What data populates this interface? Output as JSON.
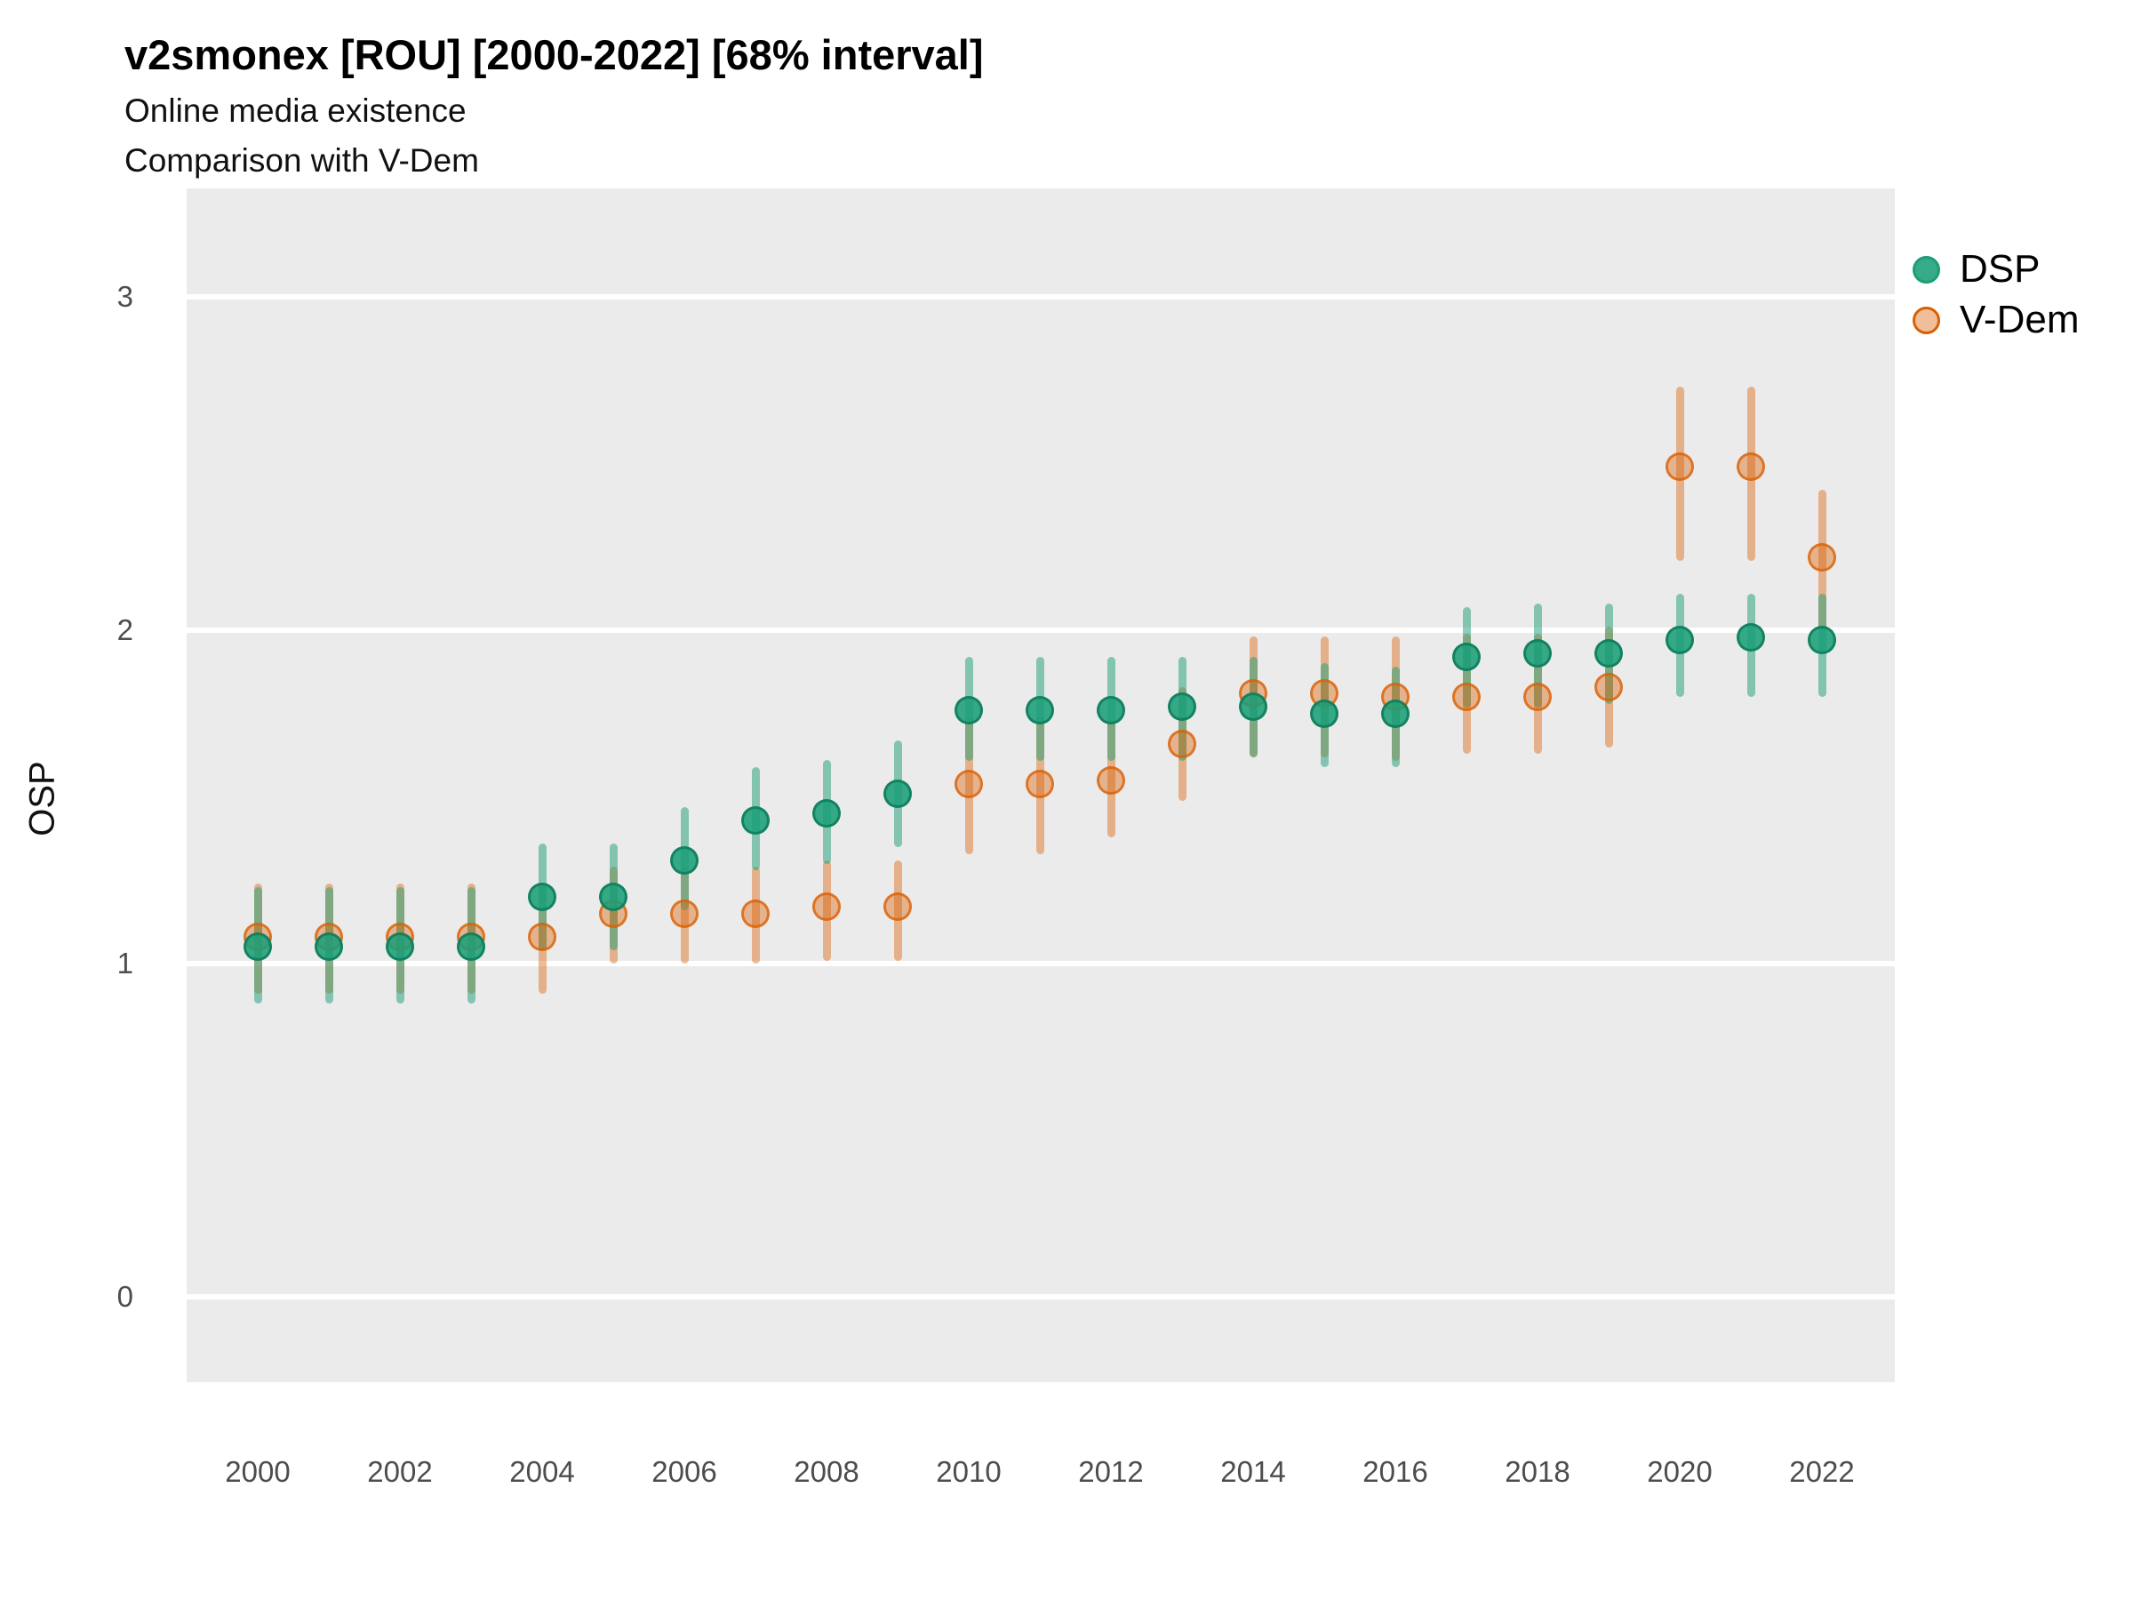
{
  "title": "v2smonex [ROU] [2000-2022] [68% interval]",
  "subtitle1": "Online media existence",
  "subtitle2": "Comparison with V-Dem",
  "y_axis_title": "OSP",
  "legend": {
    "items": [
      {
        "label": "DSP",
        "color": "#1B9E77"
      },
      {
        "label": "V-Dem",
        "color": "#D95F02"
      }
    ]
  },
  "colors": {
    "dsp": "#1B9E77",
    "vdem": "#D95F02",
    "panel_background": "#EBEBEB",
    "gridline": "#FFFFFF"
  },
  "chart_data": {
    "type": "scatter",
    "title": "v2smonex [ROU] [2000-2022] [68% interval]",
    "subtitle": [
      "Online media existence",
      "Comparison with V-Dem"
    ],
    "ylabel": "OSP",
    "xlabel": "",
    "interval": "68%",
    "grid": "major horizontal white lines on gray panel",
    "legend_position": "top-right outside panel",
    "ylim": [
      -0.35,
      3.32
    ],
    "xlim": [
      1999,
      2023
    ],
    "y_ticks": [
      0,
      1,
      2,
      3
    ],
    "x_tick_years": [
      2000,
      2002,
      2004,
      2006,
      2008,
      2010,
      2012,
      2014,
      2016,
      2018,
      2020,
      2022
    ],
    "x": [
      2000,
      2001,
      2002,
      2003,
      2004,
      2005,
      2006,
      2007,
      2008,
      2009,
      2010,
      2011,
      2012,
      2013,
      2014,
      2015,
      2016,
      2017,
      2018,
      2019,
      2020,
      2021,
      2022
    ],
    "series": [
      {
        "name": "DSP",
        "color": "#1B9E77",
        "values": [
          1.05,
          1.05,
          1.05,
          1.05,
          1.2,
          1.2,
          1.31,
          1.43,
          1.45,
          1.51,
          1.76,
          1.76,
          1.76,
          1.77,
          1.77,
          1.75,
          1.75,
          1.92,
          1.93,
          1.93,
          1.97,
          1.98,
          1.97
        ],
        "lower": [
          0.89,
          0.89,
          0.89,
          0.89,
          1.05,
          1.05,
          1.17,
          1.29,
          1.31,
          1.36,
          1.62,
          1.62,
          1.62,
          1.62,
          1.63,
          1.6,
          1.6,
          1.78,
          1.78,
          1.79,
          1.81,
          1.81,
          1.81
        ],
        "upper": [
          1.22,
          1.22,
          1.22,
          1.22,
          1.35,
          1.35,
          1.46,
          1.58,
          1.6,
          1.66,
          1.91,
          1.91,
          1.91,
          1.91,
          1.91,
          1.89,
          1.88,
          2.06,
          2.07,
          2.07,
          2.1,
          2.1,
          2.1
        ]
      },
      {
        "name": "V-Dem",
        "color": "#D95F02",
        "values": [
          1.08,
          1.08,
          1.08,
          1.08,
          1.08,
          1.15,
          1.15,
          1.15,
          1.17,
          1.17,
          1.54,
          1.54,
          1.55,
          1.66,
          1.81,
          1.81,
          1.8,
          1.8,
          1.8,
          1.83,
          2.49,
          2.49,
          2.22
        ],
        "lower": [
          0.92,
          0.92,
          0.92,
          0.92,
          0.92,
          1.01,
          1.01,
          1.01,
          1.02,
          1.02,
          1.34,
          1.34,
          1.39,
          1.5,
          1.63,
          1.63,
          1.62,
          1.64,
          1.64,
          1.66,
          2.22,
          2.22,
          2.01
        ],
        "upper": [
          1.23,
          1.23,
          1.23,
          1.23,
          1.23,
          1.28,
          1.28,
          1.28,
          1.3,
          1.3,
          1.73,
          1.73,
          1.72,
          1.82,
          1.97,
          1.97,
          1.97,
          1.98,
          1.98,
          2.0,
          2.72,
          2.72,
          2.41
        ]
      }
    ]
  }
}
